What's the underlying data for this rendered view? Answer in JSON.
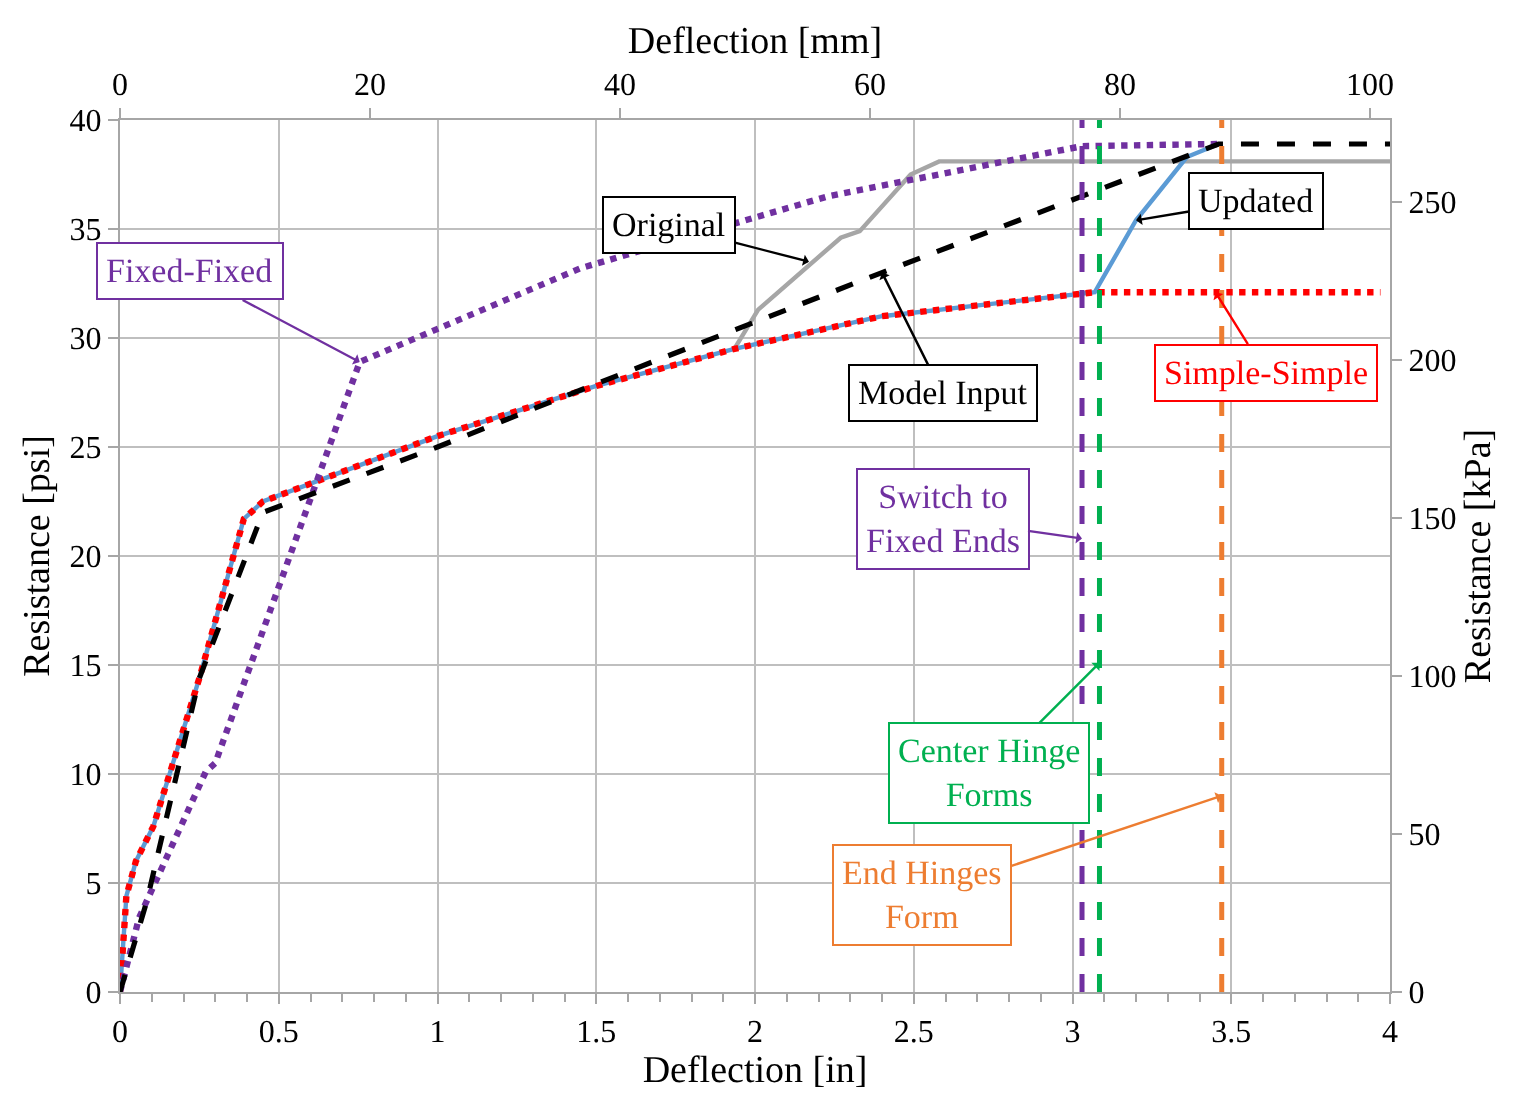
{
  "chart_data": {
    "type": "line",
    "xlabel": "Deflection [in]",
    "x2label": "Deflection [mm]",
    "ylabel": "Resistance [psi]",
    "y2label": "Resistance [kPa]",
    "xlim": [
      0,
      4
    ],
    "xticks": [
      0,
      0.5,
      1,
      1.5,
      2,
      2.5,
      3,
      3.5,
      4
    ],
    "x2lim": [
      0,
      101.6
    ],
    "x2ticks": [
      0,
      20,
      40,
      60,
      80,
      100
    ],
    "ylim": [
      0,
      40
    ],
    "yticks": [
      0,
      5,
      10,
      15,
      20,
      25,
      30,
      35,
      40
    ],
    "y2lim": [
      0,
      275.8
    ],
    "y2ticks": [
      0,
      50,
      100,
      150,
      200,
      250
    ],
    "grid": true,
    "marker": "none",
    "series": [
      {
        "color": "#a6a6a6",
        "line_style": "solid",
        "x": [
          1.935,
          2.01,
          2.27,
          2.33,
          2.49,
          2.58,
          4.0
        ],
        "values": [
          29.5,
          31.3,
          34.6,
          34.9,
          37.5,
          38.1,
          38.1
        ]
      },
      {
        "color": "#5b9bd5",
        "line_style": "solid",
        "x": [
          0,
          0.02,
          0.05,
          0.105,
          0.25,
          0.39,
          0.45,
          1.0,
          1.5,
          1.935,
          2.4,
          3.07,
          3.2,
          3.36,
          3.46
        ],
        "values": [
          0,
          4.4,
          6,
          7.6,
          14.4,
          21.7,
          22.5,
          25.5,
          27.8,
          29.5,
          31.0,
          32.1,
          35.4,
          38.3,
          38.9
        ]
      },
      {
        "color": "#ff0000",
        "line_style": "dotted",
        "x": [
          0,
          0.02,
          0.05,
          0.105,
          0.25,
          0.39,
          0.45,
          1.0,
          1.5,
          1.935,
          2.4,
          3.07,
          3.97
        ],
        "values": [
          0,
          4.4,
          6,
          7.6,
          14.4,
          21.7,
          22.5,
          25.5,
          27.8,
          29.5,
          31.0,
          32.1,
          32.1
        ]
      },
      {
        "color": "#7030a0",
        "line_style": "dotted",
        "x": [
          0,
          0.06,
          0.27,
          0.3,
          0.755,
          1.45,
          2.23,
          3.03,
          3.46
        ],
        "values": [
          0,
          3.4,
          10.1,
          10.5,
          28.9,
          33.2,
          36.5,
          38.8,
          38.9
        ]
      },
      {
        "color": "#000000",
        "line_style": "dashed",
        "x": [
          0,
          0.085,
          0.25,
          0.45,
          1.0,
          1.5,
          2.4,
          3.46,
          4.0
        ],
        "values": [
          0,
          4.2,
          14.4,
          22.0,
          25.0,
          27.9,
          33.0,
          38.9,
          38.9
        ]
      }
    ],
    "ref_lines": [
      {
        "axis": "x",
        "value": 3.03,
        "color": "#7030a0",
        "line_style": "dashed"
      },
      {
        "axis": "x",
        "value": 3.085,
        "color": "#00b050",
        "line_style": "dashed"
      },
      {
        "axis": "x",
        "value": 3.47,
        "color": "#ed7d31",
        "line_style": "dashed"
      }
    ],
    "annotations": [
      {
        "text": "Fixed-Fixed",
        "x": 0.755,
        "y": 28.9
      },
      {
        "text": "Original",
        "x": 2.17,
        "y": 33.5
      },
      {
        "text": "Model Input",
        "x": 2.4,
        "y": 33.0
      },
      {
        "text": "Updated",
        "x": 3.2,
        "y": 35.4
      },
      {
        "text": "Simple-Simple",
        "x": 3.45,
        "y": 32.1
      },
      {
        "text": "Switch to\nFixed Ends",
        "x": 3.03,
        "y": 20.8
      },
      {
        "text": "Center Hinge\nForms",
        "x": 3.085,
        "y": 15.1
      },
      {
        "text": "End Hinges\nForm",
        "x": 3.47,
        "y": 9.0
      }
    ]
  }
}
